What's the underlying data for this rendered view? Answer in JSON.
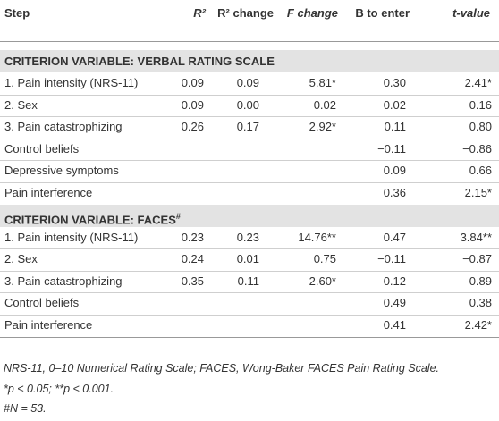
{
  "table": {
    "header": [
      "Step",
      "R²",
      "R² change",
      "F change",
      "B to enter",
      "t-value"
    ],
    "sections": [
      {
        "title": "CRITERION VARIABLE: VERBAL RATING SCALE",
        "mark": null,
        "rows": [
          [
            "1.  Pain intensity (NRS-11)",
            "0.09",
            "0.09",
            "5.81*",
            "0.30",
            "2.41*"
          ],
          [
            "2.  Sex",
            "0.09",
            "0.00",
            "0.02",
            "0.02",
            "0.16"
          ],
          [
            "3.  Pain catastrophizing",
            "0.26",
            "0.17",
            "2.92*",
            "0.11",
            "0.80"
          ],
          [
            "Control beliefs",
            null,
            null,
            null,
            "−0.11",
            "−0.86"
          ],
          [
            "Depressive symptoms",
            null,
            null,
            null,
            "0.09",
            "0.66"
          ],
          [
            "Pain interference",
            null,
            null,
            null,
            "0.36",
            "2.15*"
          ]
        ]
      },
      {
        "title": "CRITERION VARIABLE: FACES",
        "mark": "#",
        "rows": [
          [
            "1.  Pain intensity (NRS-11)",
            "0.23",
            "0.23",
            "14.76**",
            "0.47",
            "3.84**"
          ],
          [
            "2.  Sex",
            "0.24",
            "0.01",
            "0.75",
            "−0.11",
            "−0.87"
          ],
          [
            "3.  Pain catastrophizing",
            "0.35",
            "0.11",
            "2.60*",
            "0.12",
            "0.89"
          ],
          [
            "Control beliefs",
            null,
            null,
            null,
            "0.49",
            "0.38"
          ],
          [
            "Pain interference",
            null,
            null,
            null,
            "0.41",
            "2.42*"
          ]
        ]
      }
    ]
  },
  "footnotes": [
    "NRS-11, 0–10 Numerical Rating Scale; FACES, Wong-Baker FACES Pain Rating Scale.",
    "*p < 0.05; **p < 0.001.",
    "#N = 53."
  ]
}
